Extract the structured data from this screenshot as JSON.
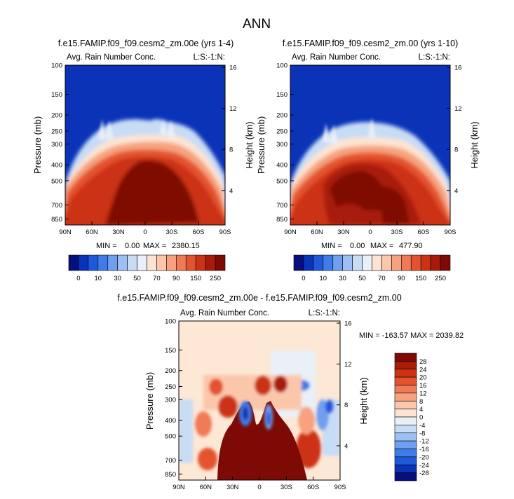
{
  "page_title": "ANN",
  "colors": {
    "blue_scale": [
      "#05107e",
      "#0a33b8",
      "#1f59d9",
      "#3f7ce8",
      "#6f9ff0",
      "#9dbff3",
      "#c7dcf5",
      "#e9f0f8"
    ],
    "white": "#ffffff",
    "red_scale": [
      "#fde4d2",
      "#fbc7ab",
      "#f6a27e",
      "#f07a55",
      "#e4532f",
      "#cc3315",
      "#a81b08",
      "#7e0a05"
    ],
    "background_field": "#0a33b8",
    "diff_background": "#fde7d5"
  },
  "chart_data": [
    {
      "type": "heatmap",
      "title": "f.e15.FAMIP.f09_f09.cesm2_zm.00e (yrs 1-4)",
      "left_label": "Avg. Rain Number Conc.",
      "right_label": "L:S:-1:N:",
      "ylabel": "Pressure (mb)",
      "y2label": "Height (km)",
      "x_ticks": [
        "90N",
        "60N",
        "30N",
        "0",
        "30S",
        "60S",
        "90S"
      ],
      "y_ticks": [
        "100",
        "150",
        "200",
        "250",
        "300",
        "400",
        "500",
        "700",
        "850"
      ],
      "y2_ticks": [
        "16",
        "12",
        "8",
        "4"
      ],
      "ylim": [
        100,
        925
      ],
      "log_y": true,
      "min_label": "MIN =",
      "min_value": "0.00",
      "max_label": "MAX =",
      "max_value": "2380.15",
      "colorbar_labels": [
        "0",
        "10",
        "30",
        "50",
        "70",
        "90",
        "150",
        "250"
      ],
      "colorbar_orientation": "horizontal"
    },
    {
      "type": "heatmap",
      "title": "f.e15.FAMIP.f09_f09.cesm2_zm.00 (yrs 1-10)",
      "left_label": "Avg. Rain Number Conc.",
      "right_label": "L:S:-1:N:",
      "ylabel": "Pressure (mb)",
      "y2label": "Height (km)",
      "x_ticks": [
        "90N",
        "60N",
        "30N",
        "0",
        "30S",
        "60S",
        "90S"
      ],
      "y_ticks": [
        "100",
        "150",
        "200",
        "250",
        "300",
        "400",
        "500",
        "700",
        "850"
      ],
      "y2_ticks": [
        "16",
        "12",
        "8",
        "4"
      ],
      "ylim": [
        100,
        925
      ],
      "log_y": true,
      "min_label": "MIN =",
      "min_value": "0.00",
      "max_label": "MAX =",
      "max_value": "477.90",
      "colorbar_labels": [
        "0",
        "10",
        "30",
        "50",
        "70",
        "90",
        "150",
        "250"
      ],
      "colorbar_orientation": "horizontal"
    },
    {
      "type": "heatmap",
      "title": "f.e15.FAMIP.f09_f09.cesm2_zm.00e - f.e15.FAMIP.f09_f09.cesm2_zm.00",
      "left_label": "Avg. Rain Number Conc.",
      "right_label": "L:S:-1:N:",
      "ylabel": "Pressure (mb)",
      "y2label": "Height (km)",
      "x_ticks": [
        "90N",
        "60N",
        "30N",
        "0",
        "30S",
        "60S",
        "90S"
      ],
      "y_ticks": [
        "100",
        "150",
        "200",
        "250",
        "300",
        "400",
        "500",
        "700",
        "850"
      ],
      "y2_ticks": [
        "16",
        "12",
        "8",
        "4"
      ],
      "ylim": [
        100,
        925
      ],
      "log_y": true,
      "minmax_text": "MIN = -163.57  MAX = 2039.82",
      "colorbar_labels": [
        "28",
        "24",
        "20",
        "16",
        "12",
        "8",
        "4",
        "0",
        "-4",
        "-8",
        "-12",
        "-16",
        "-20",
        "-24",
        "-28"
      ],
      "colorbar_orientation": "vertical"
    }
  ]
}
